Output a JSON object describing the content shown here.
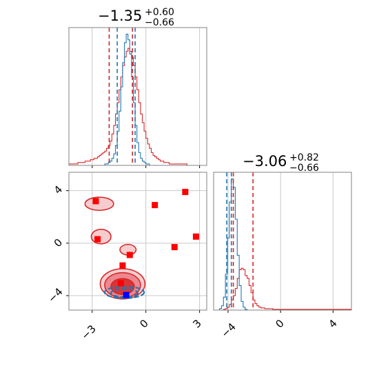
{
  "colors": {
    "red": "#d62728",
    "blue": "#1f77b4",
    "marker_red": "#ff0000",
    "marker_blue": "#0000ff",
    "grid": "#c8c8c8"
  },
  "titles": {
    "param1": {
      "value": "−1.35",
      "upper": "+0.60",
      "lower": "−0.66"
    },
    "param2": {
      "value": "−3.06",
      "upper": "+0.82",
      "lower": "−0.66"
    }
  },
  "axes": {
    "x1_ticks": [
      "−3",
      "0",
      "3"
    ],
    "y2_ticks": [
      "4",
      "0",
      "−4"
    ],
    "x2_ticks": [
      "−4",
      "0",
      "4"
    ]
  },
  "chart_data": [
    {
      "type": "histogram",
      "panel": "top-left marginal",
      "x_range": [
        -4.3,
        3.4
      ],
      "x_ticks": [
        -3,
        0,
        3
      ],
      "grid": true,
      "series": [
        {
          "color": "red",
          "bin_start": -4.3,
          "bin_width": 0.1,
          "counts": [
            1,
            1,
            1,
            1,
            1,
            2,
            2,
            2,
            2,
            3,
            3,
            3,
            4,
            4,
            5,
            5,
            6,
            7,
            8,
            9,
            10,
            12,
            14,
            17,
            22,
            28,
            36,
            44,
            53,
            62,
            70,
            76,
            80,
            82,
            80,
            76,
            70,
            62,
            53,
            44,
            36,
            30,
            24,
            19,
            15,
            12,
            9,
            7,
            6,
            5,
            4,
            3,
            3,
            2,
            2,
            2,
            1,
            1,
            1,
            1,
            1,
            1,
            1,
            1,
            1,
            1,
            0,
            0,
            0,
            0,
            0,
            0,
            0,
            0,
            0,
            0,
            0
          ]
        },
        {
          "color": "blue",
          "bin_start": -4.3,
          "bin_width": 0.1,
          "counts": [
            0,
            0,
            0,
            0,
            0,
            0,
            0,
            0,
            0,
            0,
            0,
            0,
            0,
            0,
            0,
            0,
            0,
            0,
            0,
            0,
            1,
            1,
            2,
            3,
            5,
            8,
            14,
            24,
            38,
            55,
            72,
            86,
            92,
            88,
            78,
            62,
            44,
            28,
            16,
            9,
            5,
            3,
            2,
            1,
            1,
            0,
            0,
            0,
            0,
            0,
            0,
            0,
            0,
            0,
            0,
            0,
            0,
            0,
            0,
            0,
            0,
            0,
            0,
            0,
            0,
            0,
            0,
            0,
            0,
            0,
            0,
            0,
            0,
            0,
            0,
            0,
            0
          ]
        }
      ],
      "quantile_lines": [
        {
          "color": "red",
          "x": -2.05
        },
        {
          "color": "red",
          "x": -0.75
        },
        {
          "color": "blue",
          "x": -1.6
        },
        {
          "color": "blue",
          "x": -0.6
        }
      ]
    },
    {
      "type": "histogram",
      "panel": "bottom-right marginal",
      "x_range": [
        -5.1,
        5.4
      ],
      "x_ticks": [
        -4,
        0,
        4
      ],
      "grid": true,
      "series": [
        {
          "color": "red",
          "bin_start": -5.1,
          "bin_width": 0.15,
          "counts": [
            0,
            0,
            0,
            0,
            0,
            1,
            2,
            4,
            8,
            14,
            20,
            30,
            44,
            56,
            58,
            56,
            48,
            44,
            34,
            24,
            14,
            9,
            6,
            4,
            3,
            3,
            2,
            2,
            2,
            2,
            1,
            1,
            1,
            1,
            1,
            1,
            1,
            1,
            1,
            1,
            1,
            1,
            1,
            1,
            1,
            1,
            1,
            1,
            1,
            1,
            1,
            1,
            1,
            1,
            1,
            1,
            1,
            1,
            1,
            1,
            1,
            1,
            1,
            1,
            1,
            1,
            1,
            1,
            1,
            1
          ]
        },
        {
          "color": "blue",
          "bin_start": -5.1,
          "bin_width": 0.15,
          "counts": [
            0,
            0,
            0,
            2,
            6,
            18,
            50,
            100,
            150,
            182,
            170,
            126,
            76,
            34,
            12,
            4,
            1,
            0,
            0,
            0,
            0,
            0,
            0,
            0,
            0,
            0,
            0,
            0,
            0,
            0,
            0,
            0,
            0,
            0,
            0,
            0,
            0,
            0,
            0,
            0,
            0,
            0,
            0,
            0,
            0,
            0,
            0,
            0,
            0,
            0,
            0,
            0,
            0,
            0,
            0,
            0,
            0,
            0,
            0,
            0,
            0,
            0,
            0,
            0,
            0,
            0,
            0,
            0,
            0,
            0
          ]
        }
      ],
      "quantile_lines": [
        {
          "color": "red",
          "x": -3.6
        },
        {
          "color": "red",
          "x": -2.1
        },
        {
          "color": "blue",
          "x": -4.1
        },
        {
          "color": "blue",
          "x": -3.75
        }
      ]
    },
    {
      "type": "scatter",
      "panel": "bottom-left joint",
      "x_range": [
        -4.3,
        3.4
      ],
      "y_range": [
        -5.1,
        5.4
      ],
      "x_ticks": [
        -3,
        0,
        3
      ],
      "y_ticks": [
        -4,
        0,
        4
      ],
      "grid": true,
      "points": [
        {
          "x": -2.8,
          "y": 3.2,
          "color": "marker_red"
        },
        {
          "x": 0.5,
          "y": 2.9,
          "color": "marker_red"
        },
        {
          "x": 2.2,
          "y": 3.9,
          "color": "marker_red"
        },
        {
          "x": -2.7,
          "y": 0.3,
          "color": "marker_red"
        },
        {
          "x": 1.6,
          "y": -0.3,
          "color": "marker_red"
        },
        {
          "x": 2.8,
          "y": 0.5,
          "color": "marker_red"
        },
        {
          "x": -0.9,
          "y": -0.9,
          "color": "marker_red"
        },
        {
          "x": -1.3,
          "y": -1.7,
          "color": "marker_red"
        },
        {
          "x": -1.4,
          "y": -3.05,
          "color": "marker_red"
        },
        {
          "x": -1.1,
          "y": -3.95,
          "color": "marker_blue"
        }
      ],
      "contours_red": [
        {
          "cx": -1.3,
          "cy": -3.1,
          "rx": 1.25,
          "ry": 1.15,
          "level": "outer"
        },
        {
          "cx": -1.3,
          "cy": -3.2,
          "rx": 1.0,
          "ry": 0.95,
          "level": "mid"
        },
        {
          "cx": -1.3,
          "cy": -3.3,
          "rx": 0.65,
          "ry": 0.6,
          "level": "inner"
        },
        {
          "cx": -2.6,
          "cy": 3.0,
          "rx": 0.8,
          "ry": 0.5,
          "level": "outer"
        },
        {
          "cx": -2.5,
          "cy": 0.5,
          "rx": 0.55,
          "ry": 0.55,
          "level": "outer"
        },
        {
          "cx": -1.0,
          "cy": -0.5,
          "rx": 0.45,
          "ry": 0.4,
          "level": "outer"
        }
      ],
      "contours_blue": [
        {
          "cx": -1.2,
          "cy": -3.75,
          "rx": 1.1,
          "ry": 0.45
        },
        {
          "cx": -1.2,
          "cy": -3.8,
          "rx": 0.75,
          "ry": 0.3
        }
      ]
    }
  ]
}
